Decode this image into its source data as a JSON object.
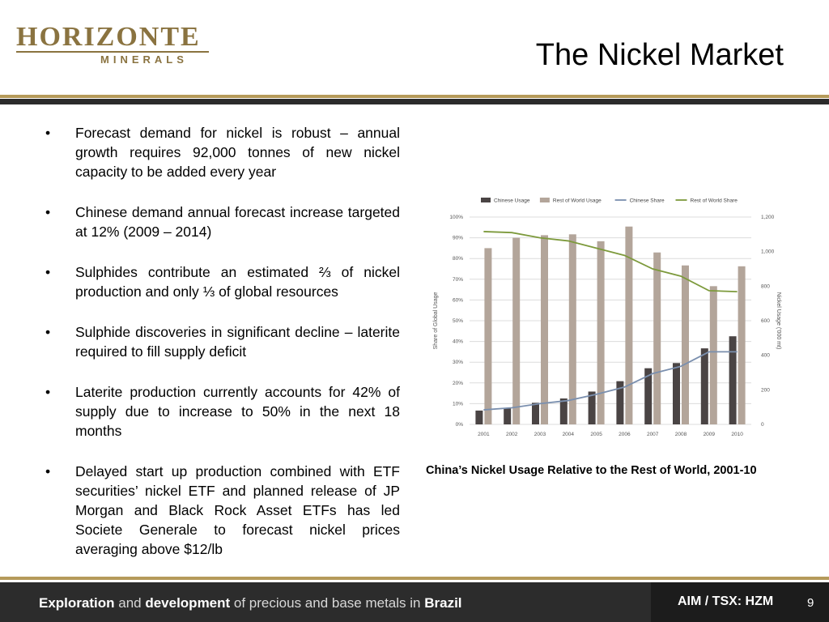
{
  "logo": {
    "main_text": "HORIZONTE",
    "sub_text": "MINERALS"
  },
  "title": "The Nickel Market",
  "bullet_marker": "•",
  "bullets": [
    "Forecast demand for nickel is robust – annual growth requires 92,000 tonnes of new nickel capacity to be added every year",
    "Chinese demand annual forecast  increase targeted at 12% (2009 – 2014)",
    "Sulphides contribute an estimated ⅔ of nickel production and only ⅓ of global resources",
    "Sulphide discoveries in significant decline – laterite required to fill supply deficit",
    "Laterite production currently accounts for 42% of supply due to increase to 50% in the next 18 months",
    "Delayed start up production combined with ETF securities’ nickel ETF and planned release of JP Morgan and Black Rock Asset ETFs has led Societe Generale to forecast nickel prices averaging above $12/lb"
  ],
  "chart_caption": "China’s Nickel Usage Relative to the Rest of World, 2001-10",
  "chart_data": {
    "type": "bar",
    "categories": [
      "2001",
      "2002",
      "2003",
      "2004",
      "2005",
      "2006",
      "2007",
      "2008",
      "2009",
      "2010"
    ],
    "series": [
      {
        "name": "Chinese Usage",
        "kind": "bar",
        "axis": "right",
        "color": "#4a4444",
        "values": [
          80,
          95,
          125,
          150,
          190,
          250,
          325,
          355,
          440,
          510
        ]
      },
      {
        "name": "Rest of World Usage",
        "kind": "bar",
        "axis": "right",
        "color": "#b3a59a",
        "values": [
          1020,
          1080,
          1095,
          1100,
          1060,
          1145,
          995,
          920,
          800,
          915
        ]
      },
      {
        "name": "Chinese Share",
        "kind": "line",
        "axis": "left",
        "color": "#7a8fae",
        "values": [
          7,
          8,
          10,
          11.5,
          14.5,
          18,
          24.5,
          28,
          35,
          35
        ]
      },
      {
        "name": "Rest of World Share",
        "kind": "line",
        "axis": "left",
        "color": "#7d9a3c",
        "values": [
          93,
          92.5,
          90,
          88.5,
          85,
          81.5,
          75,
          71.5,
          64.5,
          64
        ]
      }
    ],
    "ylabel": "Share of Global Usage",
    "y2label": "Nickel Usage ('000 mt)",
    "ylim": [
      0,
      100
    ],
    "y2lim": [
      0,
      1200
    ],
    "yticks": [
      "0%",
      "10%",
      "20%",
      "30%",
      "40%",
      "50%",
      "60%",
      "70%",
      "80%",
      "90%",
      "100%"
    ],
    "y2ticks": [
      "0",
      "200",
      "400",
      "600",
      "800",
      "1,000",
      "1,200"
    ],
    "grid": true,
    "legend_position": "top"
  },
  "footer": {
    "tagline": [
      {
        "text": "Exploration",
        "bold": true
      },
      {
        "text": " and ",
        "bold": false
      },
      {
        "text": "development",
        "bold": true
      },
      {
        "text": " of precious and base metals in ",
        "bold": false
      },
      {
        "text": "Brazil",
        "bold": true
      }
    ],
    "ticker": "AIM / TSX: HZM",
    "page_number": "9"
  }
}
